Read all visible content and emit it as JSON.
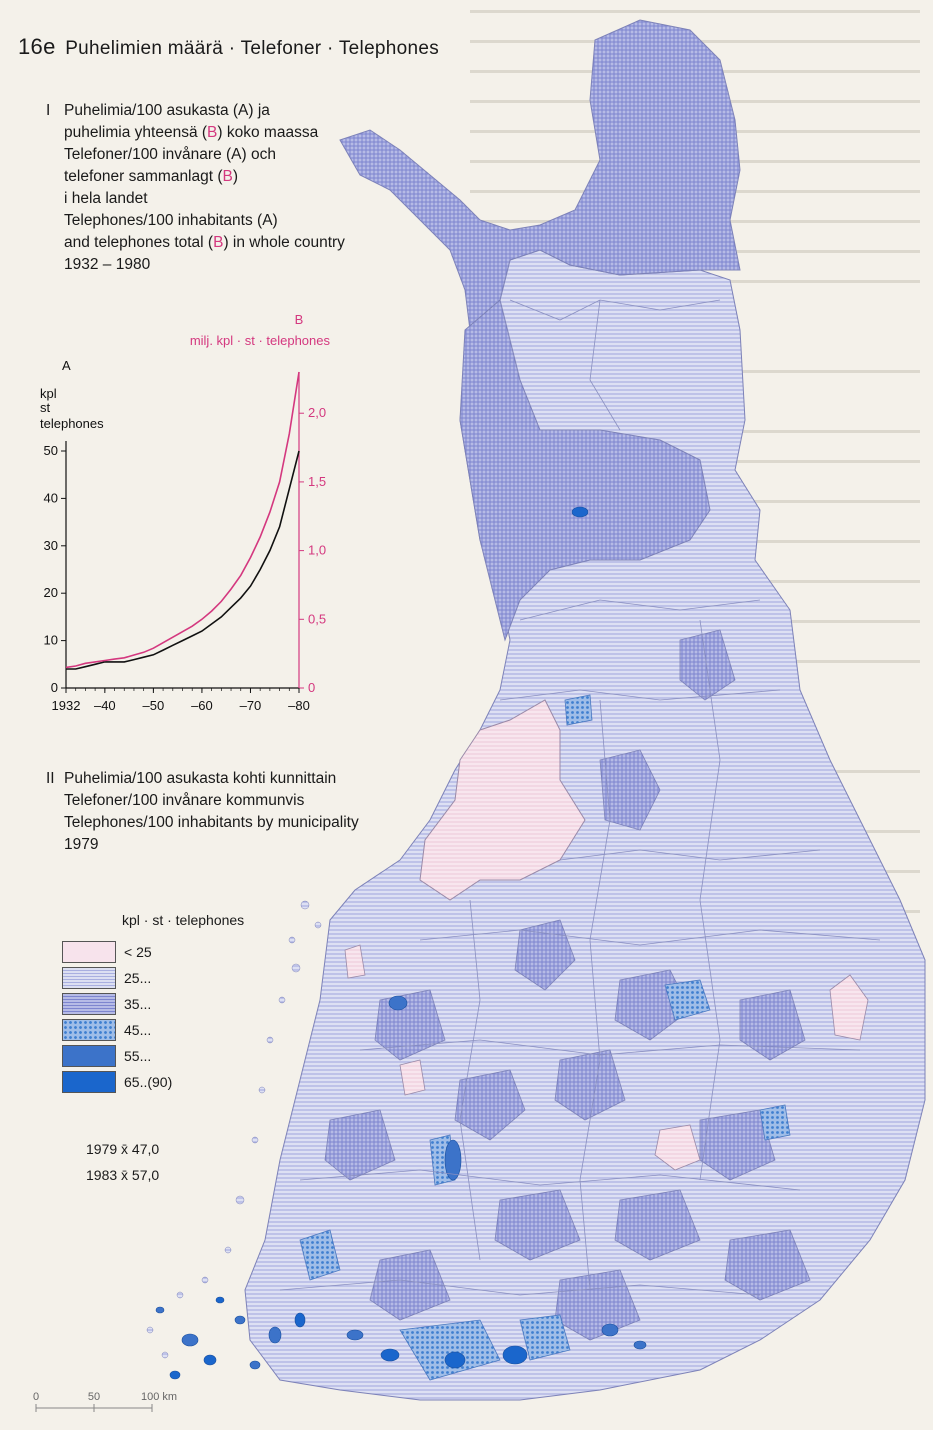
{
  "title": {
    "number": "16e",
    "text": "Puhelimien määrä · Telefoner · Telephones"
  },
  "section1": {
    "roman": "I",
    "lines": [
      "Puhelimia/100 asukasta (A) ja",
      "puhelimia yhteensä (B) koko maassa",
      "Telefoner/100 invånare (A) och",
      "telefoner sammanlagt (B)",
      "i hela landet",
      "Telephones/100 inhabitants (A)",
      "and telephones total (B) in whole country",
      "1932 – 1980"
    ]
  },
  "chart_data": {
    "type": "line",
    "x_tick_labels": [
      "1932",
      "–40",
      "–50",
      "–60",
      "–70",
      "–80"
    ],
    "x_ticks": [
      1932,
      1940,
      1950,
      1960,
      1970,
      1980
    ],
    "xlim": [
      1932,
      1980
    ],
    "axis_a": {
      "letter": "A",
      "unit_lines": [
        "kpl",
        "st",
        "telephones"
      ],
      "ticks": [
        0,
        10,
        20,
        30,
        40,
        50
      ],
      "ylim": [
        0,
        50
      ]
    },
    "axis_b": {
      "letter": "B",
      "unit": "milj. kpl · st · telephones",
      "ticks": [
        "0",
        "0,5",
        "1,0",
        "1,5",
        "2,0"
      ],
      "tick_values": [
        0,
        0.5,
        1.0,
        1.5,
        2.0
      ],
      "ylim": [
        0,
        2.3
      ]
    },
    "series": [
      {
        "axis": "A",
        "color": "#111111",
        "x": [
          1932,
          1934,
          1936,
          1938,
          1940,
          1942,
          1944,
          1946,
          1948,
          1950,
          1952,
          1954,
          1956,
          1958,
          1960,
          1962,
          1964,
          1966,
          1968,
          1970,
          1972,
          1974,
          1976,
          1978,
          1980
        ],
        "y": [
          4,
          4,
          4.5,
          5,
          5.5,
          5.5,
          5.5,
          6,
          6.5,
          7,
          8,
          9,
          10,
          11,
          12,
          13.5,
          15,
          17,
          19,
          21.5,
          25,
          29,
          34,
          42,
          50
        ]
      },
      {
        "axis": "B",
        "color": "#d4387f",
        "x": [
          1932,
          1934,
          1936,
          1938,
          1940,
          1942,
          1944,
          1946,
          1948,
          1950,
          1952,
          1954,
          1956,
          1958,
          1960,
          1962,
          1964,
          1966,
          1968,
          1970,
          1972,
          1974,
          1976,
          1978,
          1980
        ],
        "y": [
          0.15,
          0.16,
          0.18,
          0.19,
          0.2,
          0.21,
          0.22,
          0.24,
          0.26,
          0.29,
          0.33,
          0.37,
          0.41,
          0.45,
          0.5,
          0.56,
          0.63,
          0.72,
          0.82,
          0.95,
          1.1,
          1.28,
          1.5,
          1.85,
          2.3
        ]
      }
    ]
  },
  "section2": {
    "roman": "II",
    "lines": [
      "Puhelimia/100 asukasta kohti kunnittain",
      "Telefoner/100 invånare kommunvis",
      "Telephones/100 inhabitants by municipality",
      "1979"
    ]
  },
  "legend": {
    "header": "kpl · st · telephones",
    "items": [
      {
        "label": "< 25",
        "color": "#f7e3ec"
      },
      {
        "label": "25...",
        "color": "#dcdff2"
      },
      {
        "label": "35...",
        "color": "#a4a9de"
      },
      {
        "label": "45...",
        "color": "#78a3dc"
      },
      {
        "label": "55...",
        "color": "#3c73c9"
      },
      {
        "label": "65..(90)",
        "color": "#1a66cc"
      }
    ]
  },
  "means": [
    "1979 x̄ 47,0",
    "1983 x̄ 57,0"
  ],
  "scale": {
    "labels": [
      "0",
      "50",
      "100 km"
    ]
  },
  "colors": {
    "pink_accent": "#d4387f",
    "map_25": "#c6cbee",
    "map_35": "#9da4dc"
  }
}
